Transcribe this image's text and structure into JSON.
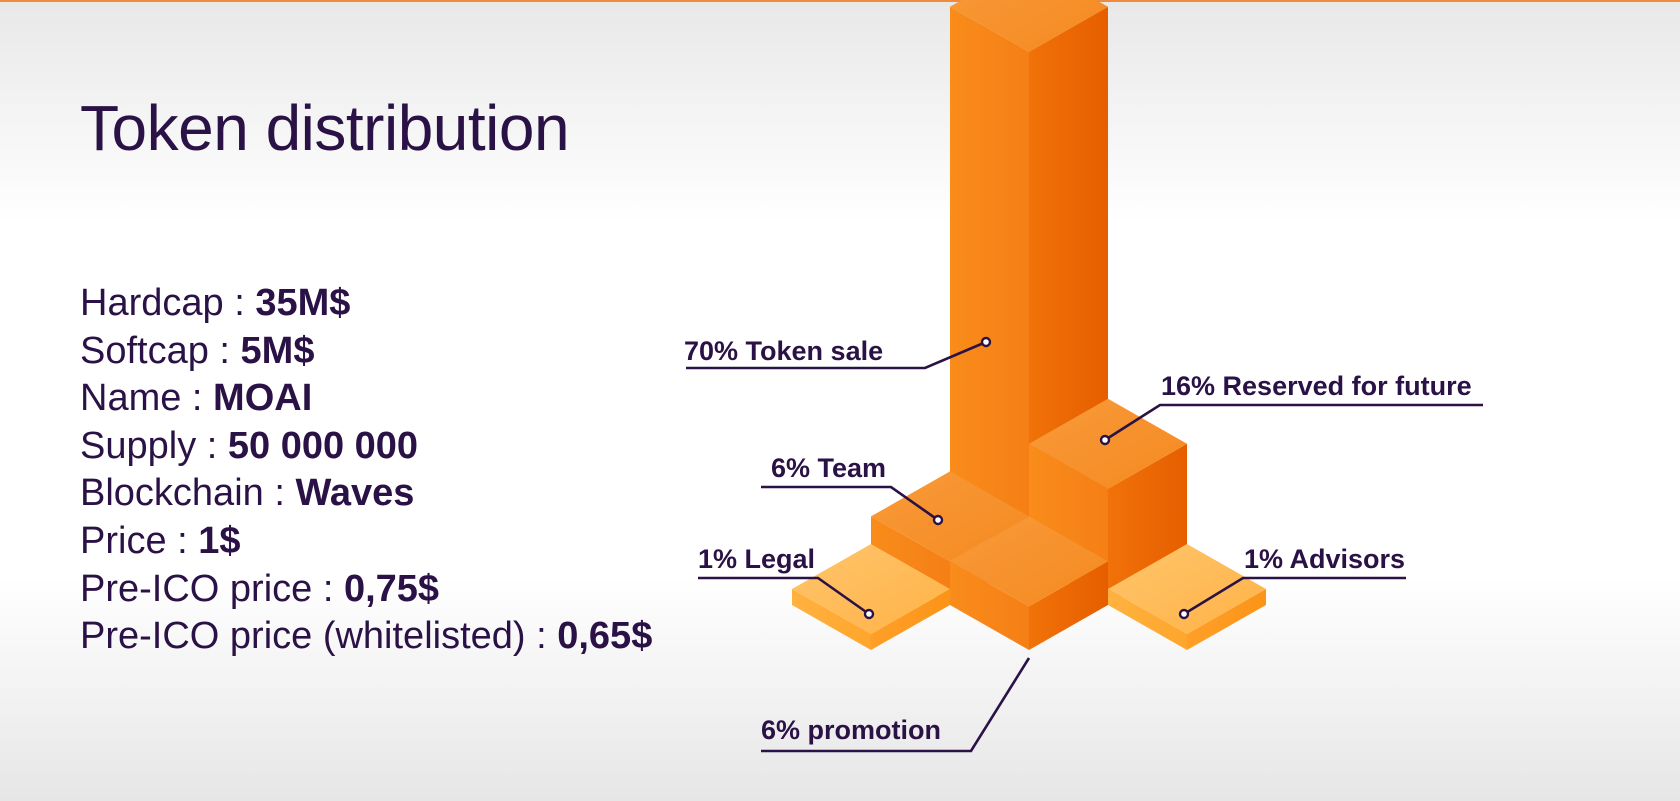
{
  "slide": {
    "title": "Token distribution",
    "specs": [
      {
        "label": "Hardcap : ",
        "value": "35M$"
      },
      {
        "label": "Softcap : ",
        "value": "5M$"
      },
      {
        "label": "Name : ",
        "value": "MOAI"
      },
      {
        "label": "Supply : ",
        "value": "50 000 000"
      },
      {
        "label": "Blockchain : ",
        "value": "Waves"
      },
      {
        "label": "Price : ",
        "value": "1$"
      },
      {
        "label": "Pre-ICO price : ",
        "value": "0,75$"
      },
      {
        "label": "Pre-ICO price (whitelisted) : ",
        "value": "0,65$"
      }
    ]
  },
  "colors": {
    "title_text": "#2b1246",
    "label_text": "#2b1246",
    "leader_line": "#2b1246",
    "bar_top": "#f89a3a",
    "bar_left": "#f57f16",
    "bar_right": "#e65e00",
    "accent_top_line": "#f08a3c"
  },
  "chart_data": {
    "type": "bar",
    "style": "isometric-3d",
    "title": "Token distribution",
    "unit": "%",
    "categories": [
      "Token sale",
      "Reserved for future",
      "Team",
      "promotion",
      "Legal",
      "Advisors"
    ],
    "values": [
      70,
      16,
      6,
      6,
      1,
      1
    ],
    "labels": [
      "70% Token sale",
      "16% Reserved for future",
      "6% Team",
      "6% promotion",
      "1% Legal",
      "1% Advisors"
    ],
    "legend": "none",
    "grid": false
  }
}
